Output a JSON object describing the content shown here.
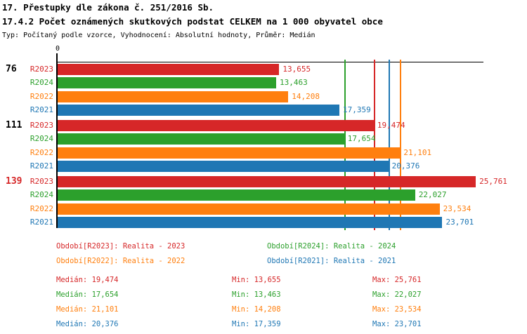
{
  "header": {
    "title_line1": "17. Přestupky dle zákona č. 251/2016 Sb.",
    "title_line2": "17.4.2 Počet oznámených skutkových podstat CELKEM na 1 000 obyvatel obce",
    "meta_line": "Typ: Počítaný podle vzorce, Vyhodnocení: Absolutní hodnoty, Průměr: Medián"
  },
  "colors": {
    "R2023": "#d62728",
    "R2024": "#2ca02c",
    "R2022": "#ff7f0e",
    "R2021": "#1f77b4",
    "axis": "#000000",
    "group_label_default": "#000000",
    "group_label_highlight": "#d62728"
  },
  "chart_data": {
    "type": "bar",
    "orientation": "horizontal",
    "title": "17.4.2 Počet oznámených skutkových podstat CELKEM na 1 000 obyvatel obce",
    "axis": {
      "origin_label": "0",
      "x_min": 0,
      "x_max": 26.5,
      "grid": false
    },
    "series_order": [
      "R2023",
      "R2024",
      "R2022",
      "R2021"
    ],
    "groups": [
      {
        "label": "76",
        "highlighted": false,
        "bars": [
          {
            "series": "R2023",
            "value": 13.655,
            "value_label": "13,655"
          },
          {
            "series": "R2024",
            "value": 13.463,
            "value_label": "13,463"
          },
          {
            "series": "R2022",
            "value": 14.208,
            "value_label": "14,208"
          },
          {
            "series": "R2021",
            "value": 17.359,
            "value_label": "17,359"
          }
        ]
      },
      {
        "label": "111",
        "highlighted": false,
        "bars": [
          {
            "series": "R2023",
            "value": 19.474,
            "value_label": "19,474"
          },
          {
            "series": "R2024",
            "value": 17.654,
            "value_label": "17,654"
          },
          {
            "series": "R2022",
            "value": 21.101,
            "value_label": "21,101"
          },
          {
            "series": "R2021",
            "value": 20.376,
            "value_label": "20,376"
          }
        ]
      },
      {
        "label": "139",
        "highlighted": true,
        "bars": [
          {
            "series": "R2023",
            "value": 25.761,
            "value_label": "25,761"
          },
          {
            "series": "R2024",
            "value": 22.027,
            "value_label": "22,027"
          },
          {
            "series": "R2022",
            "value": 23.534,
            "value_label": "23,534"
          },
          {
            "series": "R2021",
            "value": 23.701,
            "value_label": "23,701"
          }
        ]
      }
    ],
    "median_lines": [
      {
        "series": "R2023",
        "value": 19.474
      },
      {
        "series": "R2024",
        "value": 17.654
      },
      {
        "series": "R2022",
        "value": 21.101
      },
      {
        "series": "R2021",
        "value": 20.376
      }
    ]
  },
  "legend": [
    {
      "series": "R2023",
      "text": "Období[R2023]: Realita - 2023"
    },
    {
      "series": "R2024",
      "text": "Období[R2024]: Realita - 2024"
    },
    {
      "series": "R2022",
      "text": "Období[R2022]: Realita - 2022"
    },
    {
      "series": "R2021",
      "text": "Období[R2021]: Realita - 2021"
    }
  ],
  "stats": [
    {
      "series": "R2023",
      "median": "Medián: 19,474",
      "min": "Min: 13,655",
      "max": "Max: 25,761"
    },
    {
      "series": "R2024",
      "median": "Medián: 17,654",
      "min": "Min: 13,463",
      "max": "Max: 22,027"
    },
    {
      "series": "R2022",
      "median": "Medián: 21,101",
      "min": "Min: 14,208",
      "max": "Max: 23,534"
    },
    {
      "series": "R2021",
      "median": "Medián: 20,376",
      "min": "Min: 17,359",
      "max": "Max: 23,701"
    }
  ]
}
